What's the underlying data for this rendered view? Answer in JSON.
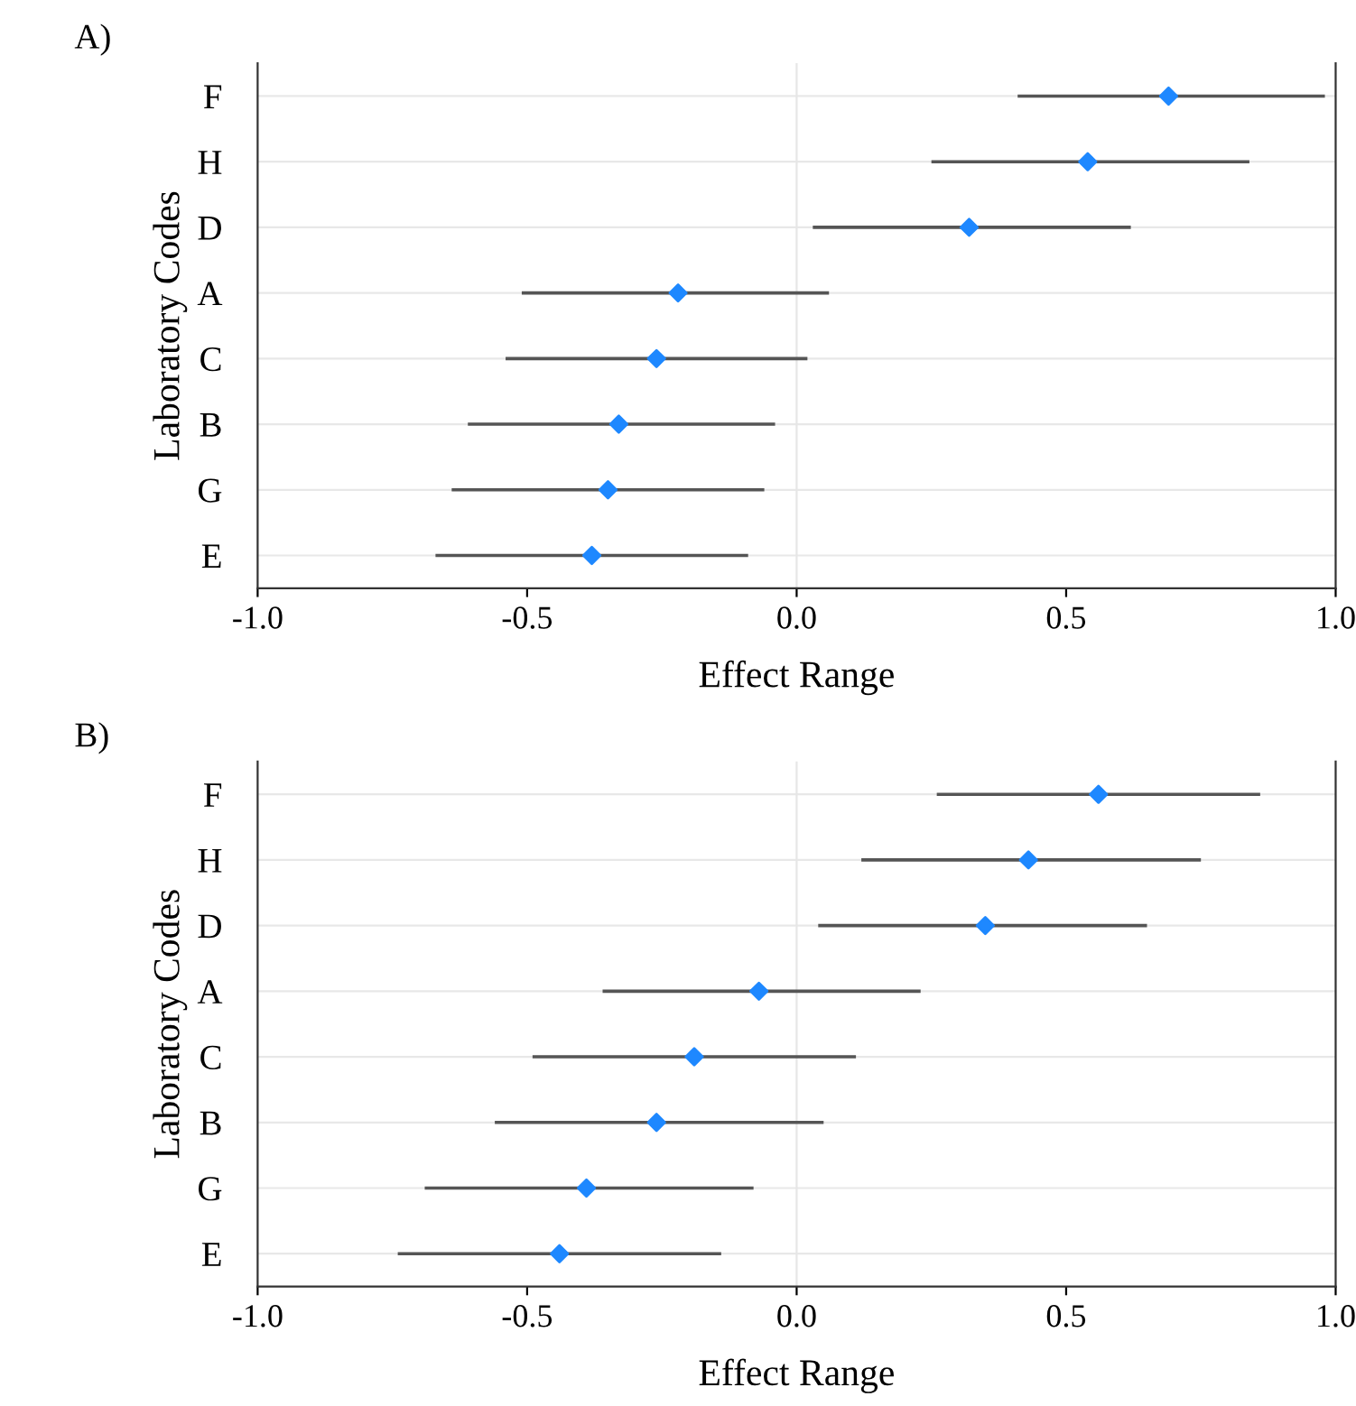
{
  "chart_data": [
    {
      "type": "scatter",
      "title": "A)",
      "orientation": "horizontal",
      "xlabel": "Effect Range",
      "ylabel": "Laboratory Codes",
      "categories": [
        "F",
        "H",
        "D",
        "A",
        "C",
        "B",
        "G",
        "E"
      ],
      "series": [
        {
          "color": "#1e88ff",
          "values": [
            0.69,
            0.54,
            0.32,
            -0.22,
            -0.26,
            -0.33,
            -0.35,
            -0.38
          ],
          "errors": [
            [
              0.41,
              0.98
            ],
            [
              0.25,
              0.84
            ],
            [
              0.03,
              0.62
            ],
            [
              -0.51,
              0.06
            ],
            [
              -0.54,
              0.02
            ],
            [
              -0.61,
              -0.04
            ],
            [
              -0.64,
              -0.06
            ],
            [
              -0.67,
              -0.09
            ]
          ]
        }
      ],
      "xlim": [
        -1.0,
        1.0
      ],
      "xticks": [
        {
          "value": -1.0,
          "label": "-1.0"
        },
        {
          "value": -0.5,
          "label": "-0.5"
        },
        {
          "value": 0.0,
          "label": "0.0"
        },
        {
          "value": 0.5,
          "label": "0.5"
        },
        {
          "value": 1.0,
          "label": "1.0"
        }
      ],
      "grid": "y",
      "marker": "diamond",
      "ref_lines": [
        {
          "axis": "x",
          "value": 0.0,
          "color": "#e6e6e6"
        }
      ]
    },
    {
      "type": "scatter",
      "title": "B)",
      "orientation": "horizontal",
      "xlabel": "Effect Range",
      "ylabel": "Laboratory Codes",
      "categories": [
        "F",
        "H",
        "D",
        "A",
        "C",
        "B",
        "G",
        "E"
      ],
      "series": [
        {
          "color": "#1e88ff",
          "values": [
            0.56,
            0.43,
            0.35,
            -0.07,
            -0.19,
            -0.26,
            -0.39,
            -0.44
          ],
          "errors": [
            [
              0.26,
              0.86
            ],
            [
              0.12,
              0.75
            ],
            [
              0.04,
              0.65
            ],
            [
              -0.36,
              0.23
            ],
            [
              -0.49,
              0.11
            ],
            [
              -0.56,
              0.05
            ],
            [
              -0.69,
              -0.08
            ],
            [
              -0.74,
              -0.14
            ]
          ]
        }
      ],
      "xlim": [
        -1.0,
        1.0
      ],
      "xticks": [
        {
          "value": -1.0,
          "label": "-1.0"
        },
        {
          "value": -0.5,
          "label": "-0.5"
        },
        {
          "value": 0.0,
          "label": "0.0"
        },
        {
          "value": 0.5,
          "label": "0.5"
        },
        {
          "value": 1.0,
          "label": "1.0"
        }
      ],
      "grid": "y",
      "marker": "diamond",
      "ref_lines": [
        {
          "axis": "x",
          "value": 0.0,
          "color": "#e6e6e6"
        }
      ]
    }
  ]
}
